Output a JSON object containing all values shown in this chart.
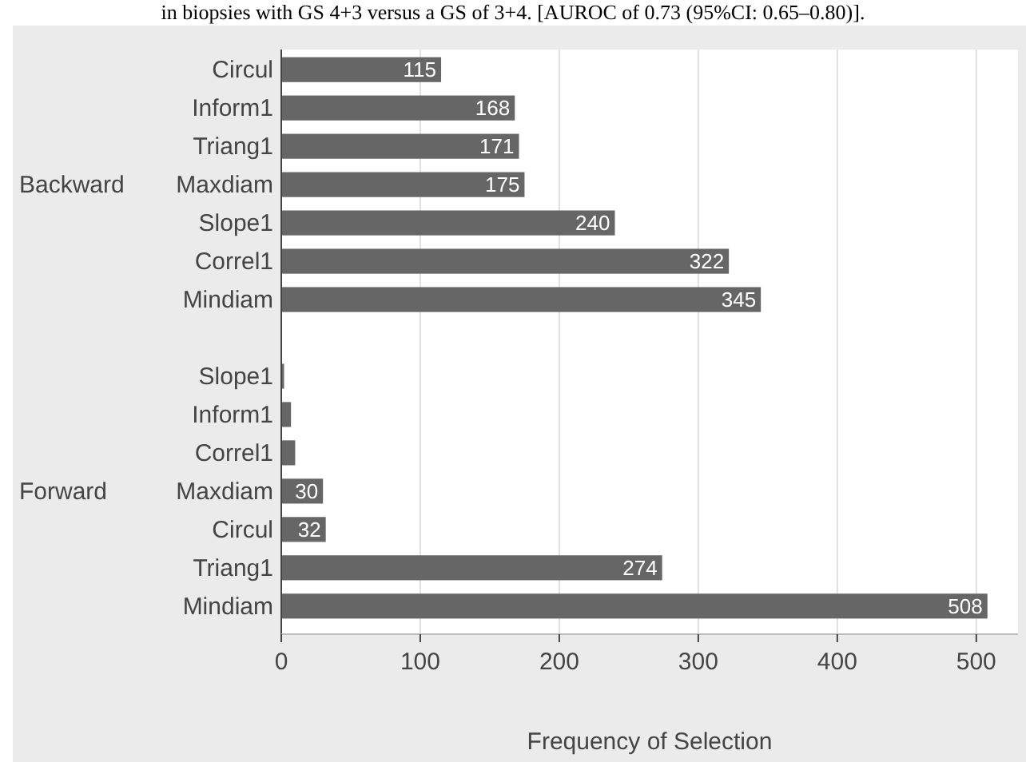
{
  "chart_data": {
    "type": "bar",
    "orientation": "horizontal",
    "xlabel": "Frequency of Selection",
    "annotations": [
      "in biopsies with GS 4+3 versus a GS of 3+4. [AUROC of 0.73 (95%CI: 0.65–0.80)].",
      "Backward",
      "Forward"
    ],
    "categories": [
      "Circul",
      "Inform1",
      "Triang1",
      "Maxdiam",
      "Slope1",
      "Correl1",
      "Mindiam",
      null,
      "Slope1",
      "Inform1",
      "Correl1",
      "Maxdiam",
      "Circul",
      "Triang1",
      "Mindiam"
    ],
    "values": [
      115,
      168,
      171,
      175,
      240,
      322,
      345,
      null,
      2,
      7,
      10,
      30,
      32,
      274,
      508
    ],
    "value_labels": [
      "115",
      "168",
      "171",
      "175",
      "240",
      "322",
      "345",
      null,
      null,
      null,
      null,
      "30",
      "32",
      "274",
      "508"
    ],
    "color": "#666666",
    "xlim": [
      0,
      530
    ],
    "xticks": [
      0,
      100,
      200,
      300,
      400,
      500
    ],
    "grid": "x"
  }
}
